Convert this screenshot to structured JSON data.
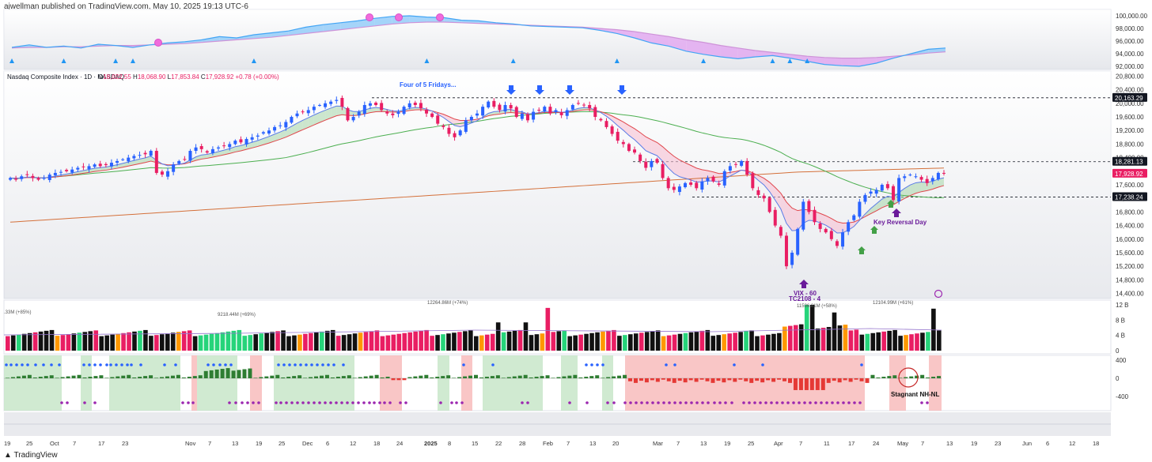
{
  "header": {
    "published_by": "ajwellman published on TradingView.com, May 10, 2025 19:13 UTC-6"
  },
  "brand": {
    "name": "TradingView"
  },
  "chart_data": [
    {
      "type": "area",
      "name": "top-indicator",
      "y_ticks": [
        "100,000.00",
        "98,000.00",
        "96,000.00",
        "94,000.00",
        "92,000.00"
      ],
      "ylim": [
        91500,
        101000
      ],
      "fast": [
        95000,
        95400,
        95000,
        95200,
        94900,
        95500,
        95300,
        95000,
        95400,
        95700,
        95900,
        96200,
        96700,
        96500,
        97000,
        97300,
        97600,
        98200,
        98600,
        98900,
        99200,
        99600,
        99900,
        100000,
        99800,
        99700,
        99300,
        99200,
        98900,
        98700,
        98400,
        98300,
        98200,
        98100,
        97700,
        97200,
        96500,
        95700,
        95200,
        94400,
        93900,
        93500,
        93200,
        93500,
        93700,
        93300,
        92800,
        92300,
        92100,
        92000,
        92500,
        93300,
        94000,
        94700,
        94900
      ],
      "slow": [
        94900,
        95000,
        95000,
        95100,
        95100,
        95200,
        95300,
        95300,
        95400,
        95500,
        95600,
        95800,
        96000,
        96200,
        96400,
        96600,
        96900,
        97200,
        97500,
        97800,
        98100,
        98400,
        98700,
        98900,
        99000,
        99000,
        98900,
        98800,
        98700,
        98600,
        98500,
        98400,
        98300,
        98200,
        98000,
        97800,
        97500,
        97100,
        96700,
        96200,
        95800,
        95300,
        94900,
        94500,
        94200,
        93900,
        93600,
        93400,
        93300,
        93300,
        93400,
        93600,
        93800,
        94100,
        94300
      ],
      "markers_top": [
        8.4,
        9.3,
        10.5
      ],
      "markers_left": [
        3.4
      ],
      "triangles": [
        0,
        3,
        6,
        7,
        14,
        24,
        29,
        35,
        40,
        44,
        45,
        46
      ]
    },
    {
      "type": "candlestick",
      "title": "Nasdaq Composite Index · 1D · NASDAQ",
      "ohlc_label": {
        "o_label": "O",
        "o": "18,022.55",
        "h_label": "H",
        "h": "18,068.90",
        "l_label": "L",
        "l": "17,853.84",
        "c_label": "C",
        "c": "17,928.92",
        "change": "+0.78 (+0.00%)"
      },
      "y_ticks": [
        "20,800.00",
        "20,400.00",
        "20,000.00",
        "19,600.00",
        "19,200.00",
        "18,800.00",
        "18,400.00",
        "18,000.00",
        "17,600.00",
        "17,200.00",
        "16,800.00",
        "16,400.00",
        "16,000.00",
        "15,600.00",
        "15,200.00",
        "14,800.00",
        "14,400.00"
      ],
      "ylim": [
        14250,
        20950
      ],
      "price_labels": [
        {
          "value": 20163.29,
          "text": "20,163.29",
          "color": "#131722"
        },
        {
          "value": 18281.13,
          "text": "18,281.13",
          "color": "#131722"
        },
        {
          "value": 17928.92,
          "text": "17,928.92",
          "color": "#e91e63"
        },
        {
          "value": 17238.24,
          "text": "17,238.24",
          "color": "#131722"
        }
      ],
      "hlines": [
        20163.29,
        18281.13,
        17238.24
      ],
      "annotations": [
        "Four of 5 Fridays...",
        "Key Reversal Day",
        "VIX - 60",
        "TC2108 - 4"
      ],
      "closes": [
        17800,
        17750,
        17850,
        17900,
        17800,
        17750,
        17800,
        17900,
        17950,
        17980,
        18000,
        18050,
        18100,
        18120,
        18150,
        18200,
        18150,
        18180,
        18250,
        18300,
        18350,
        18400,
        18450,
        18480,
        18500,
        18600,
        17950,
        17900,
        18000,
        18200,
        18300,
        18350,
        18600,
        18700,
        18650,
        18550,
        18650,
        18700,
        18750,
        18800,
        18900,
        18850,
        18950,
        19000,
        19050,
        19150,
        19200,
        19300,
        19350,
        19450,
        19600,
        19700,
        19750,
        19800,
        19900,
        19950,
        20000,
        20050,
        20100,
        19900,
        19500,
        19600,
        19750,
        19950,
        20000,
        19950,
        19800,
        19700,
        19650,
        19750,
        19900,
        20000,
        19950,
        19850,
        19700,
        19600,
        19400,
        19300,
        19100,
        19000,
        19200,
        19500,
        19600,
        19700,
        19900,
        20050,
        19900,
        19800,
        19950,
        19850,
        19600,
        19700,
        19500,
        19750,
        19800,
        19900,
        19700,
        19800,
        19650,
        19800,
        19950,
        20000,
        19950,
        19850,
        19600,
        19500,
        19300,
        19100,
        18900,
        18800,
        18600,
        18550,
        18300,
        18100,
        18300,
        18250,
        17800,
        17500,
        17450,
        17550,
        17650,
        17600,
        17500,
        17700,
        17800,
        17700,
        17600,
        18000,
        18150,
        18200,
        18300,
        17900,
        17500,
        17300,
        17200,
        16800,
        16400,
        16100,
        15200,
        15600,
        16300,
        17100,
        16800,
        16500,
        16300,
        16200,
        16000,
        15800,
        16200,
        16500,
        16700,
        17100,
        17300,
        17400,
        17450,
        17600,
        17500,
        17150,
        17800,
        17850,
        17900,
        17850,
        17750,
        17650,
        17800,
        17950,
        17929
      ],
      "markers": {
        "blue_arrows": [
          4,
          5,
          6,
          9
        ],
        "purple_arrows": [
          "low",
          "key-reversal"
        ],
        "green_arrows": [
          1,
          2
        ]
      }
    },
    {
      "type": "bar",
      "name": "volume",
      "y_ticks": [
        "12 B",
        "8 B",
        "4 B",
        "0"
      ],
      "labels": [
        ".33M (+85%)",
        "9218.44M (+69%)",
        "12264.86M (+74%)",
        "11596.81M (+58%)",
        "12104.99M (+61%)"
      ],
      "note": "volume colored by up/down and relative volume"
    },
    {
      "type": "bar",
      "name": "NH-NL",
      "y_ticks": [
        "400",
        "0",
        "-400"
      ],
      "annotation": "Stagnant NH-NL"
    }
  ],
  "x_axis": [
    "19",
    "25",
    "Oct",
    "7",
    "17",
    "23",
    "Nov",
    "7",
    "13",
    "19",
    "25",
    "Dec",
    "6",
    "12",
    "18",
    "24",
    "2025",
    "8",
    "15",
    "22",
    "28",
    "Feb",
    "7",
    "13",
    "20",
    "Mar",
    "7",
    "13",
    "19",
    "25",
    "Apr",
    "7",
    "11",
    "17",
    "24",
    "May",
    "7",
    "13",
    "19",
    "23",
    "Jun",
    "6",
    "12",
    "18"
  ],
  "colors": {
    "up": "#2962ff",
    "down": "#e91e63",
    "ema_fast": "#5b7ce6",
    "ema_slow": "#e0474c",
    "sma50": "#4caf50",
    "sma200": "#d4703a",
    "green_zone": "#c8e6c9",
    "red_zone": "#f8bcbc",
    "vol_black": "#111111",
    "vol_green": "#26d47a",
    "vol_orange": "#ff9800",
    "vol_red": "#e91e63",
    "dot_blue": "#2962ff",
    "dot_purple": "#9c27b0",
    "bar_green": "#2e7d32",
    "bar_red": "#e53935"
  }
}
